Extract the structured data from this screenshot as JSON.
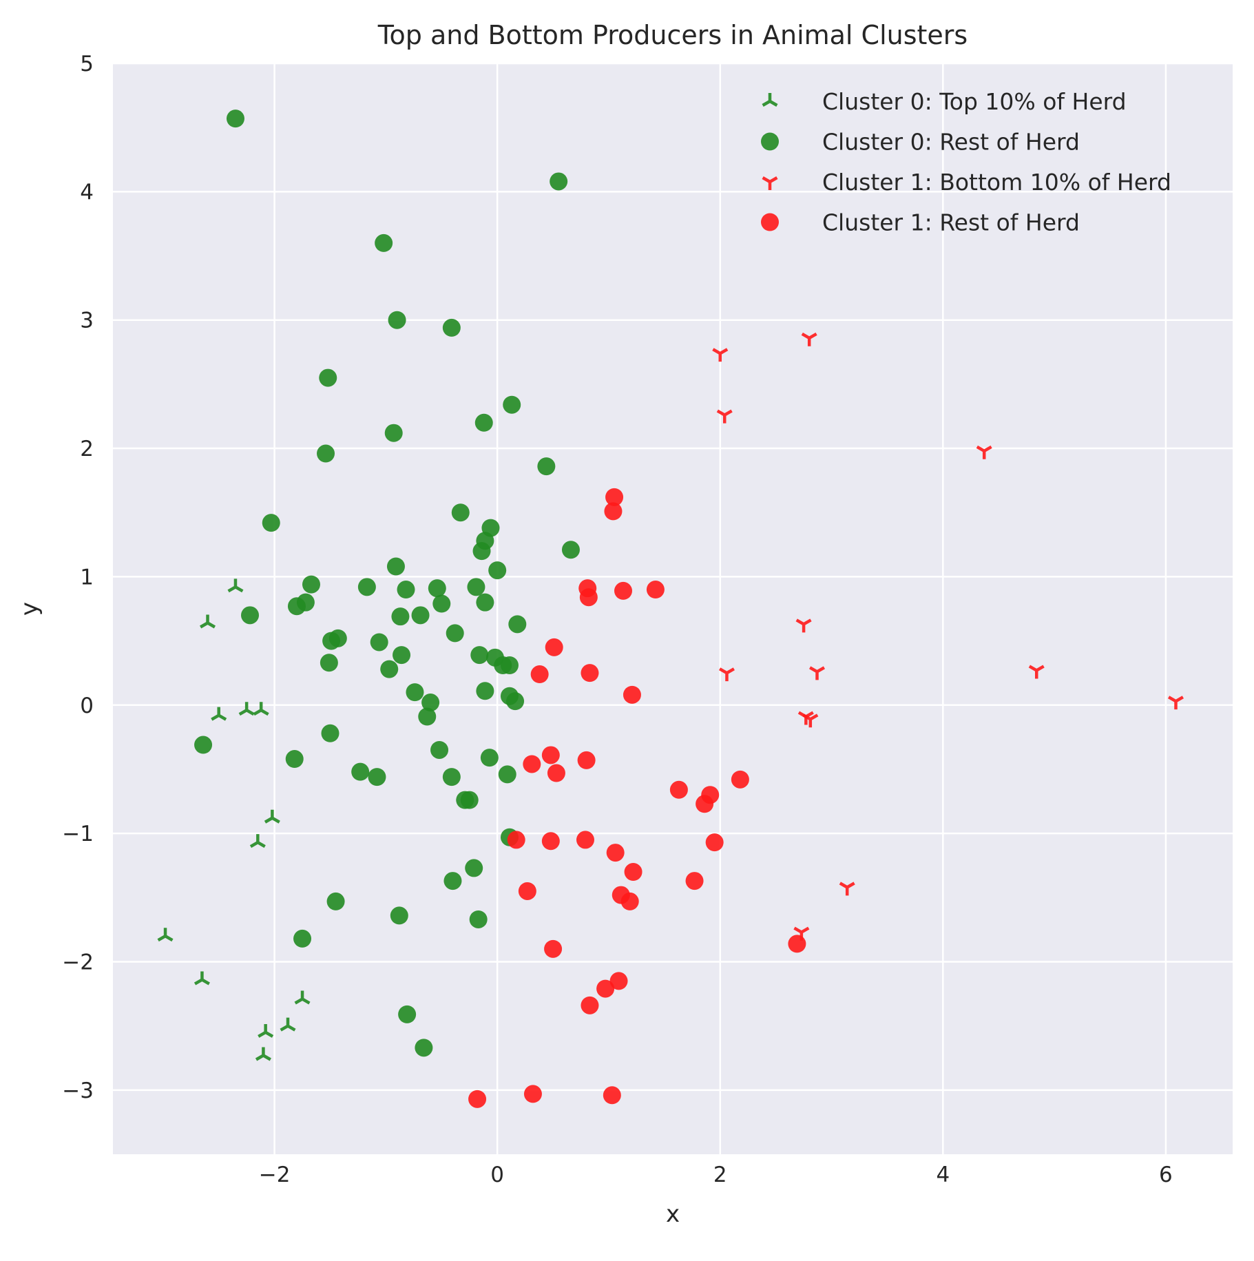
{
  "chart_data": {
    "type": "scatter",
    "title": "Top and Bottom Producers in Animal Clusters",
    "xlabel": "x",
    "ylabel": "y",
    "xlim": [
      -3.45,
      6.6
    ],
    "ylim": [
      -3.5,
      5
    ],
    "xticks": [
      -2,
      0,
      2,
      4,
      6
    ],
    "yticks": [
      -3,
      -2,
      -1,
      0,
      1,
      2,
      3,
      4,
      5
    ],
    "grid": true,
    "legend_position": "upper-right",
    "colors": {
      "background": "#eaeaf2",
      "grid": "#ffffff",
      "green": "#228b22",
      "red": "#ff1a1a"
    },
    "series": [
      {
        "name": "Cluster 0: Top 10% of Herd",
        "marker": "tri-up",
        "color": "#228b22",
        "points": [
          [
            -2.35,
            0.92
          ],
          [
            -2.6,
            0.64
          ],
          [
            -2.5,
            -0.08
          ],
          [
            -2.25,
            -0.04
          ],
          [
            -2.12,
            -0.04
          ],
          [
            -2.02,
            -0.88
          ],
          [
            -2.15,
            -1.07
          ],
          [
            -2.98,
            -1.8
          ],
          [
            -2.65,
            -2.14
          ],
          [
            -1.75,
            -2.29
          ],
          [
            -2.08,
            -2.55
          ],
          [
            -1.88,
            -2.5
          ],
          [
            -2.1,
            -2.73
          ]
        ]
      },
      {
        "name": "Cluster 0: Rest of Herd",
        "marker": "circle",
        "color": "#228b22",
        "points": [
          [
            -2.35,
            4.57
          ],
          [
            0.55,
            4.08
          ],
          [
            -1.02,
            3.6
          ],
          [
            -0.9,
            3.0
          ],
          [
            -0.41,
            2.94
          ],
          [
            -1.52,
            2.55
          ],
          [
            0.13,
            2.34
          ],
          [
            -0.12,
            2.2
          ],
          [
            -0.93,
            2.12
          ],
          [
            -1.54,
            1.96
          ],
          [
            0.44,
            1.86
          ],
          [
            -2.03,
            1.42
          ],
          [
            -0.33,
            1.5
          ],
          [
            -0.06,
            1.38
          ],
          [
            -0.11,
            1.28
          ],
          [
            -0.14,
            1.2
          ],
          [
            0.66,
            1.21
          ],
          [
            -0.91,
            1.08
          ],
          [
            0.0,
            1.05
          ],
          [
            -1.17,
            0.92
          ],
          [
            -1.67,
            0.94
          ],
          [
            -0.82,
            0.9
          ],
          [
            -0.54,
            0.91
          ],
          [
            -0.19,
            0.92
          ],
          [
            -1.72,
            0.8
          ],
          [
            -1.8,
            0.77
          ],
          [
            -0.5,
            0.79
          ],
          [
            -0.11,
            0.8
          ],
          [
            -2.22,
            0.7
          ],
          [
            -0.87,
            0.69
          ],
          [
            -0.69,
            0.7
          ],
          [
            0.18,
            0.63
          ],
          [
            -0.38,
            0.56
          ],
          [
            -1.43,
            0.52
          ],
          [
            -1.49,
            0.5
          ],
          [
            -1.06,
            0.49
          ],
          [
            -0.86,
            0.39
          ],
          [
            -0.16,
            0.39
          ],
          [
            -0.02,
            0.37
          ],
          [
            -1.51,
            0.33
          ],
          [
            -0.97,
            0.28
          ],
          [
            0.05,
            0.31
          ],
          [
            0.11,
            0.31
          ],
          [
            -0.74,
            0.1
          ],
          [
            -0.11,
            0.11
          ],
          [
            0.11,
            0.07
          ],
          [
            0.16,
            0.03
          ],
          [
            -0.6,
            0.02
          ],
          [
            -0.63,
            -0.09
          ],
          [
            -2.64,
            -0.31
          ],
          [
            -1.5,
            -0.22
          ],
          [
            -0.52,
            -0.35
          ],
          [
            -0.07,
            -0.41
          ],
          [
            -1.82,
            -0.42
          ],
          [
            -1.23,
            -0.52
          ],
          [
            -1.08,
            -0.56
          ],
          [
            -0.41,
            -0.56
          ],
          [
            0.09,
            -0.54
          ],
          [
            -0.29,
            -0.74
          ],
          [
            -0.25,
            -0.74
          ],
          [
            0.11,
            -1.03
          ],
          [
            -0.21,
            -1.27
          ],
          [
            -0.4,
            -1.37
          ],
          [
            -1.45,
            -1.53
          ],
          [
            -0.88,
            -1.64
          ],
          [
            -0.17,
            -1.67
          ],
          [
            -1.75,
            -1.82
          ],
          [
            -0.81,
            -2.41
          ],
          [
            -0.66,
            -2.67
          ]
        ]
      },
      {
        "name": "Cluster 1: Bottom 10% of Herd",
        "marker": "tri-down",
        "color": "#ff1a1a",
        "points": [
          [
            2.8,
            2.86
          ],
          [
            2.0,
            2.74
          ],
          [
            2.04,
            2.26
          ],
          [
            4.37,
            1.98
          ],
          [
            2.75,
            0.63
          ],
          [
            2.06,
            0.25
          ],
          [
            2.87,
            0.26
          ],
          [
            4.84,
            0.27
          ],
          [
            6.09,
            0.03
          ],
          [
            2.77,
            -0.09
          ],
          [
            2.81,
            -0.11
          ],
          [
            3.14,
            -1.42
          ],
          [
            2.73,
            -1.77
          ]
        ]
      },
      {
        "name": "Cluster 1: Rest of Herd",
        "marker": "circle",
        "color": "#ff1a1a",
        "points": [
          [
            1.05,
            1.62
          ],
          [
            1.04,
            1.51
          ],
          [
            0.81,
            0.91
          ],
          [
            1.13,
            0.89
          ],
          [
            1.42,
            0.9
          ],
          [
            0.82,
            0.84
          ],
          [
            0.51,
            0.45
          ],
          [
            0.38,
            0.24
          ],
          [
            0.83,
            0.25
          ],
          [
            1.21,
            0.08
          ],
          [
            0.48,
            -0.39
          ],
          [
            0.31,
            -0.46
          ],
          [
            0.8,
            -0.43
          ],
          [
            0.53,
            -0.53
          ],
          [
            2.18,
            -0.58
          ],
          [
            1.63,
            -0.66
          ],
          [
            1.91,
            -0.7
          ],
          [
            1.86,
            -0.77
          ],
          [
            0.17,
            -1.05
          ],
          [
            0.48,
            -1.06
          ],
          [
            0.79,
            -1.05
          ],
          [
            1.95,
            -1.07
          ],
          [
            1.06,
            -1.15
          ],
          [
            1.22,
            -1.3
          ],
          [
            1.77,
            -1.37
          ],
          [
            0.27,
            -1.45
          ],
          [
            1.11,
            -1.48
          ],
          [
            1.19,
            -1.53
          ],
          [
            0.5,
            -1.9
          ],
          [
            2.69,
            -1.86
          ],
          [
            1.09,
            -2.15
          ],
          [
            0.97,
            -2.21
          ],
          [
            0.83,
            -2.34
          ],
          [
            0.32,
            -3.03
          ],
          [
            1.03,
            -3.04
          ],
          [
            -0.18,
            -3.07
          ]
        ]
      }
    ]
  }
}
